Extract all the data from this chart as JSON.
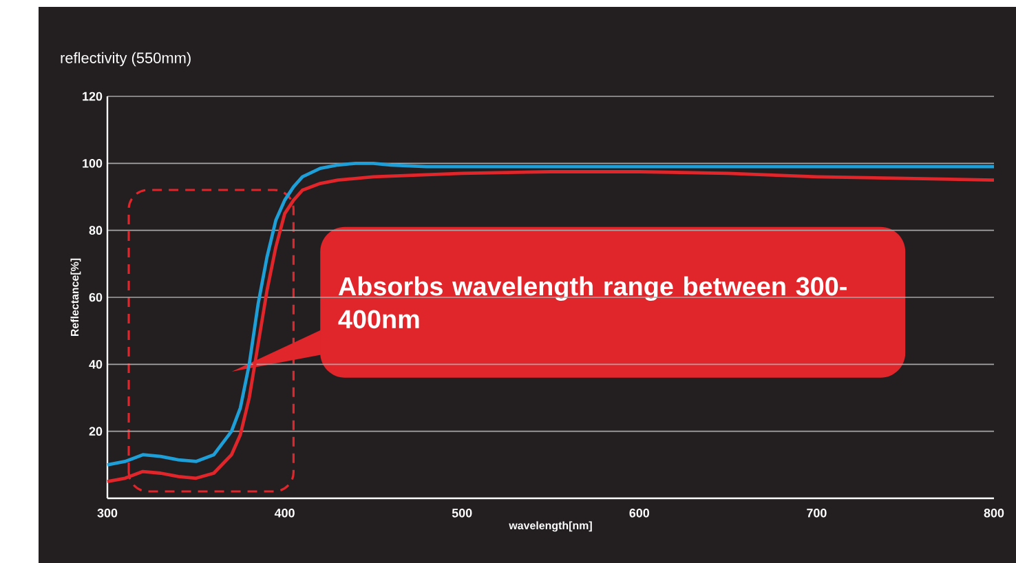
{
  "chart_data": {
    "type": "line",
    "title": "reflectivity (550mm)",
    "xlabel": "wavelength[nm]",
    "ylabel": "Reflectance[%]",
    "series": [
      {
        "color": "#1e9fd8",
        "x": [
          300,
          310,
          320,
          330,
          340,
          350,
          360,
          370,
          375,
          380,
          385,
          390,
          395,
          400,
          405,
          410,
          420,
          430,
          440,
          450,
          460,
          480,
          500,
          550,
          600,
          650,
          700,
          750,
          800
        ],
        "values": [
          10,
          11,
          13,
          12.5,
          11.5,
          11,
          13,
          20,
          27,
          40,
          58,
          72,
          83,
          89,
          93,
          96,
          98.5,
          99.5,
          100,
          100,
          99.5,
          99,
          99,
          99,
          99,
          99,
          99,
          99,
          99
        ]
      },
      {
        "color": "#e0252b",
        "x": [
          300,
          310,
          320,
          330,
          340,
          350,
          360,
          370,
          375,
          380,
          385,
          390,
          395,
          400,
          405,
          410,
          420,
          430,
          450,
          500,
          550,
          600,
          650,
          700,
          750,
          800
        ],
        "values": [
          5,
          6,
          8,
          7.5,
          6.5,
          6,
          7.5,
          13,
          19,
          30,
          46,
          62,
          75,
          85,
          89,
          92,
          94,
          95,
          96,
          97,
          97.5,
          97.5,
          97,
          96,
          95.5,
          95
        ]
      }
    ],
    "xlim": [
      300,
      800
    ],
    "xticks": [
      300,
      400,
      500,
      600,
      700,
      800
    ],
    "ylim": [
      0,
      120
    ],
    "yticks": [
      20,
      40,
      60,
      80,
      100,
      120
    ],
    "grid": "y",
    "annotations": [
      "Absorbs wavelength range between 300-400nm"
    ]
  }
}
